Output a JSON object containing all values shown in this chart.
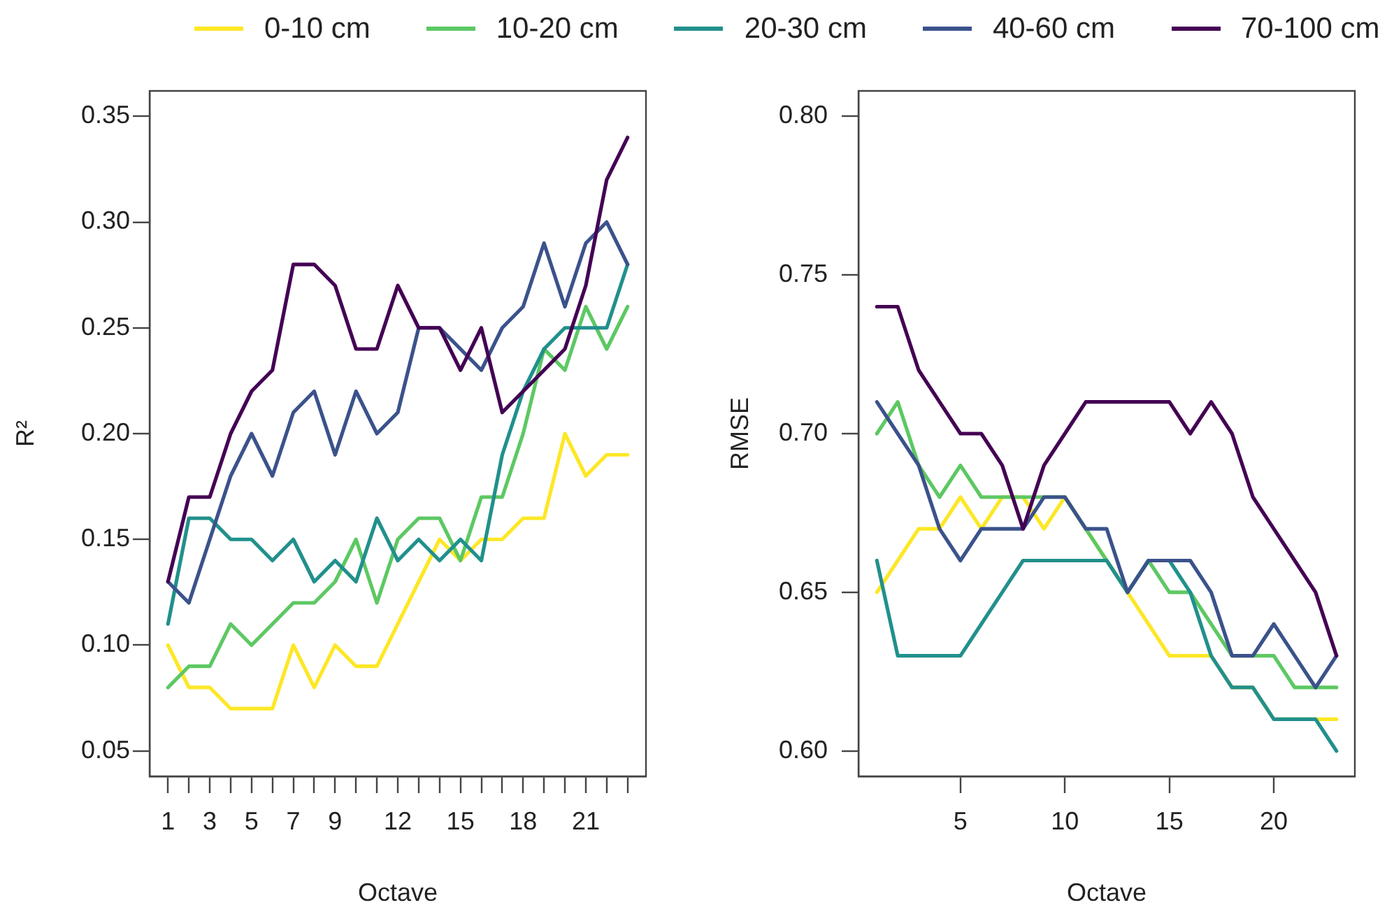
{
  "chart_data": [
    {
      "type": "line",
      "xlabel": "Octave",
      "ylabel": "R²",
      "legend": "top",
      "grid": false,
      "x": [
        1,
        2,
        3,
        4,
        5,
        6,
        7,
        8,
        9,
        10,
        11,
        12,
        13,
        14,
        15,
        16,
        17,
        18,
        19,
        20,
        21,
        22,
        23
      ],
      "xlim": [
        0.12,
        23.88
      ],
      "xticks": [
        1,
        {
          "value": 2,
          "label": null
        },
        3,
        {
          "value": 4,
          "label": null
        },
        5,
        {
          "value": 6,
          "label": null
        },
        7,
        {
          "value": 8,
          "label": null
        },
        9,
        {
          "value": 10,
          "label": null
        },
        {
          "value": 11,
          "label": null
        },
        12,
        {
          "value": 13,
          "label": null
        },
        {
          "value": 14,
          "label": null
        },
        15,
        {
          "value": 16,
          "label": null
        },
        {
          "value": 17,
          "label": null
        },
        18,
        {
          "value": 19,
          "label": null
        },
        {
          "value": 20,
          "label": null
        },
        21,
        {
          "value": 22,
          "label": null
        },
        {
          "value": 23,
          "label": null
        }
      ],
      "ylim": [
        0.038,
        0.362
      ],
      "yticks": [
        0.05,
        {
          "value": 0.1,
          "label": "0.10"
        },
        0.15,
        {
          "value": 0.2,
          "label": "0.20"
        },
        0.25,
        {
          "value": 0.3,
          "label": "0.30"
        },
        0.35
      ],
      "series": [
        {
          "name": "0-10 cm",
          "color": "#fde725",
          "values": [
            0.1,
            0.08,
            0.08,
            0.07,
            0.07,
            0.07,
            0.1,
            0.08,
            0.1,
            0.09,
            0.09,
            0.11,
            0.13,
            0.15,
            0.14,
            0.15,
            0.15,
            0.16,
            0.16,
            0.2,
            0.18,
            0.19,
            0.19
          ]
        },
        {
          "name": "10-20 cm",
          "color": "#5dc863",
          "values": [
            0.08,
            0.09,
            0.09,
            0.11,
            0.1,
            0.11,
            0.12,
            0.12,
            0.13,
            0.15,
            0.12,
            0.15,
            0.16,
            0.16,
            0.14,
            0.17,
            0.17,
            0.2,
            0.24,
            0.23,
            0.26,
            0.24,
            0.26
          ]
        },
        {
          "name": "20-30 cm",
          "color": "#21908c",
          "values": [
            0.11,
            0.16,
            0.16,
            0.15,
            0.15,
            0.14,
            0.15,
            0.13,
            0.14,
            0.13,
            0.16,
            0.14,
            0.15,
            0.14,
            0.15,
            0.14,
            0.19,
            0.22,
            0.24,
            0.25,
            0.25,
            0.25,
            0.28
          ]
        },
        {
          "name": "40-60 cm",
          "color": "#3b528b",
          "values": [
            0.13,
            0.12,
            0.15,
            0.18,
            0.2,
            0.18,
            0.21,
            0.22,
            0.19,
            0.22,
            0.2,
            0.21,
            0.25,
            0.25,
            0.24,
            0.23,
            0.25,
            0.26,
            0.29,
            0.26,
            0.29,
            0.3,
            0.28
          ]
        },
        {
          "name": "70-100 cm",
          "color": "#440154",
          "values": [
            0.13,
            0.17,
            0.17,
            0.2,
            0.22,
            0.23,
            0.28,
            0.28,
            0.27,
            0.24,
            0.24,
            0.27,
            0.25,
            0.25,
            0.23,
            0.25,
            0.21,
            0.22,
            0.23,
            0.24,
            0.27,
            0.32,
            0.34
          ]
        }
      ]
    },
    {
      "type": "line",
      "xlabel": "Octave",
      "ylabel": "RMSE",
      "grid": false,
      "x": [
        1,
        2,
        3,
        4,
        5,
        6,
        7,
        8,
        9,
        10,
        11,
        12,
        13,
        14,
        15,
        16,
        17,
        18,
        19,
        20,
        21,
        22,
        23
      ],
      "xlim": [
        0.12,
        23.88
      ],
      "xticks": [
        5,
        10,
        15,
        20
      ],
      "ylim": [
        0.592,
        0.808
      ],
      "yticks": [
        {
          "value": 0.6,
          "label": "0.60"
        },
        0.65,
        {
          "value": 0.7,
          "label": "0.70"
        },
        0.75,
        {
          "value": 0.8,
          "label": "0.80"
        }
      ],
      "series": [
        {
          "color": "#fde725",
          "values": [
            0.65,
            0.66,
            0.67,
            0.67,
            0.68,
            0.67,
            0.68,
            0.68,
            0.67,
            0.68,
            0.67,
            0.66,
            0.65,
            0.64,
            0.63,
            0.63,
            0.63,
            0.62,
            0.62,
            0.61,
            0.61,
            0.61,
            0.61
          ]
        },
        {
          "color": "#5dc863",
          "values": [
            0.7,
            0.71,
            0.69,
            0.68,
            0.69,
            0.68,
            0.68,
            0.68,
            0.68,
            0.68,
            0.67,
            0.66,
            0.65,
            0.66,
            0.65,
            0.65,
            0.64,
            0.63,
            0.63,
            0.63,
            0.62,
            0.62,
            0.62
          ]
        },
        {
          "color": "#21908c",
          "values": [
            0.66,
            0.63,
            0.63,
            0.63,
            0.63,
            0.64,
            0.65,
            0.66,
            0.66,
            0.66,
            0.66,
            0.66,
            0.65,
            0.66,
            0.66,
            0.65,
            0.63,
            0.62,
            0.62,
            0.61,
            0.61,
            0.61,
            0.6
          ]
        },
        {
          "color": "#3b528b",
          "values": [
            0.71,
            0.7,
            0.69,
            0.67,
            0.66,
            0.67,
            0.67,
            0.67,
            0.68,
            0.68,
            0.67,
            0.67,
            0.65,
            0.66,
            0.66,
            0.66,
            0.65,
            0.63,
            0.63,
            0.64,
            0.63,
            0.62,
            0.63
          ]
        },
        {
          "color": "#440154",
          "values": [
            0.74,
            0.74,
            0.72,
            0.71,
            0.7,
            0.7,
            0.69,
            0.67,
            0.69,
            0.7,
            0.71,
            0.71,
            0.71,
            0.71,
            0.71,
            0.7,
            0.71,
            0.7,
            0.68,
            0.67,
            0.66,
            0.65,
            0.63
          ]
        }
      ]
    }
  ]
}
